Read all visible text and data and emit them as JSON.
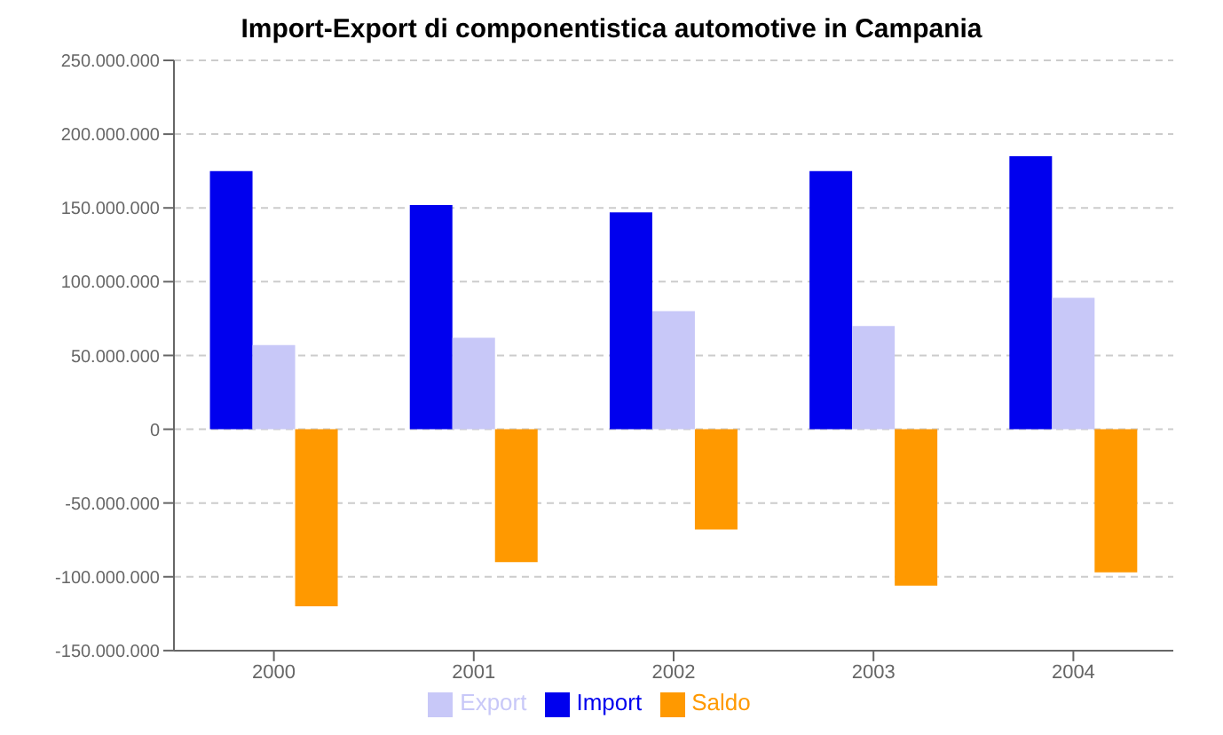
{
  "chart_data": {
    "type": "bar",
    "title": "Import-Export di componentistica automotive in Campania",
    "categories": [
      "2000",
      "2001",
      "2002",
      "2003",
      "2004"
    ],
    "series": [
      {
        "name": "Import",
        "color": "#0000ee",
        "values": [
          175000000,
          152000000,
          147000000,
          175000000,
          185000000
        ]
      },
      {
        "name": "Export",
        "color": "#c8c8f8",
        "values": [
          57000000,
          62000000,
          80000000,
          70000000,
          89000000
        ]
      },
      {
        "name": "Saldo",
        "color": "#ff9900",
        "values": [
          -120000000,
          -90000000,
          -68000000,
          -106000000,
          -97000000
        ]
      }
    ],
    "ylim": [
      -150000000,
      250000000
    ],
    "yticks": [
      {
        "value": -150000000,
        "label": "-150.000.000"
      },
      {
        "value": -100000000,
        "label": "-100.000.000"
      },
      {
        "value": -50000000,
        "label": "-50.000.000"
      },
      0,
      {
        "value": 50000000,
        "label": "50.000.000"
      },
      {
        "value": 100000000,
        "label": "100.000.000"
      },
      {
        "value": 150000000,
        "label": "150.000.000"
      },
      {
        "value": 200000000,
        "label": "200.000.000"
      },
      {
        "value": 250000000,
        "label": "250.000.000"
      }
    ],
    "grid": "y",
    "legend": "bottom"
  }
}
